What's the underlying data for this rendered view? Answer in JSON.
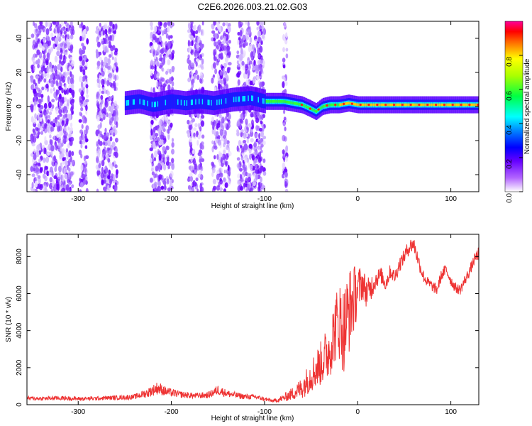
{
  "figure_title": "C2E6.2026.003.21.02.G03",
  "chart_data": [
    {
      "type": "heatmap",
      "title": "C2E6.2026.003.21.02.G03",
      "xlabel": "Height of straight line (km)",
      "ylabel": "Frequency (Hz)",
      "xlim": [
        -355,
        130
      ],
      "ylim": [
        -50,
        50
      ],
      "x_ticks": [
        -300,
        -200,
        -100,
        0,
        100
      ],
      "y_ticks": [
        -40,
        -20,
        0,
        20,
        40
      ],
      "grid": false,
      "colorbar": {
        "label": "Normalized spectral amplitude",
        "range": [
          0,
          1
        ],
        "ticks": [
          0.0,
          0.2,
          0.4,
          0.6,
          0.8
        ],
        "colors": [
          "#ffffff",
          "#9900ff",
          "#0000ff",
          "#00ffff",
          "#00ff00",
          "#ffff00",
          "#ff0000",
          "#ff0099"
        ]
      },
      "signal_track": {
        "x": [
          -250,
          -235,
          -220,
          -200,
          -185,
          -170,
          -155,
          -135,
          -115,
          -100,
          -90,
          -80,
          -70,
          -60,
          -52,
          -45,
          -38,
          -30,
          -20,
          -10,
          0,
          10,
          30,
          60,
          90,
          130
        ],
        "frequency": [
          2,
          3,
          1,
          3,
          2,
          3,
          2,
          4,
          5,
          3,
          3,
          3,
          2,
          1,
          -1,
          -3,
          0,
          1,
          1,
          2,
          1,
          1,
          1,
          1,
          1,
          1
        ]
      },
      "noise_columns_x": [
        [
          -350,
          -305
        ],
        [
          -298,
          -290
        ],
        [
          -280,
          -258
        ],
        [
          -222,
          -198
        ],
        [
          -182,
          -166
        ],
        [
          -156,
          -137
        ],
        [
          -129,
          -100
        ],
        [
          -80,
          -76
        ]
      ]
    },
    {
      "type": "line",
      "title": "",
      "xlabel": "Height of straight line (km)",
      "ylabel": "SNR (10 * v/v)",
      "xlim": [
        -355,
        130
      ],
      "ylim": [
        0,
        9200
      ],
      "x_ticks": [
        -300,
        -200,
        -100,
        0,
        100
      ],
      "y_ticks": [
        0,
        2000,
        4000,
        6000,
        8000
      ],
      "grid": false,
      "series": [
        {
          "color": "#ee3333",
          "x": [
            -355,
            -340,
            -320,
            -300,
            -280,
            -260,
            -240,
            -225,
            -215,
            -205,
            -190,
            -175,
            -160,
            -150,
            -140,
            -130,
            -120,
            -110,
            -100,
            -90,
            -80,
            -70,
            -60,
            -50,
            -40,
            -30,
            -25,
            -20,
            -15,
            -10,
            -5,
            0,
            5,
            10,
            15,
            20,
            25,
            30,
            35,
            40,
            45,
            50,
            55,
            60,
            65,
            70,
            75,
            80,
            85,
            90,
            95,
            100,
            105,
            110,
            115,
            120,
            125,
            130
          ],
          "y": [
            350,
            330,
            360,
            320,
            340,
            380,
            420,
            650,
            900,
            700,
            550,
            480,
            520,
            800,
            600,
            500,
            430,
            420,
            300,
            200,
            350,
            600,
            900,
            1600,
            2200,
            3000,
            4000,
            4600,
            4000,
            5000,
            5600,
            6200,
            6600,
            6000,
            6400,
            6800,
            7000,
            6500,
            7200,
            6900,
            7600,
            8000,
            8500,
            8700,
            7800,
            7000,
            6600,
            6400,
            6200,
            7000,
            7300,
            6700,
            6300,
            6200,
            6700,
            7200,
            7800,
            8200
          ],
          "noise_amplitude": [
            110,
            110,
            120,
            110,
            110,
            120,
            140,
            250,
            350,
            250,
            180,
            160,
            180,
            280,
            200,
            170,
            150,
            140,
            110,
            90,
            200,
            350,
            600,
            900,
            1200,
            1600,
            1800,
            2200,
            2400,
            2400,
            2000,
            1300,
            900,
            800,
            700,
            500,
            450,
            400,
            400,
            380,
            400,
            400,
            420,
            450,
            400,
            350,
            320,
            300,
            300,
            320,
            320,
            300,
            280,
            280,
            300,
            300,
            320,
            350
          ]
        }
      ]
    }
  ]
}
